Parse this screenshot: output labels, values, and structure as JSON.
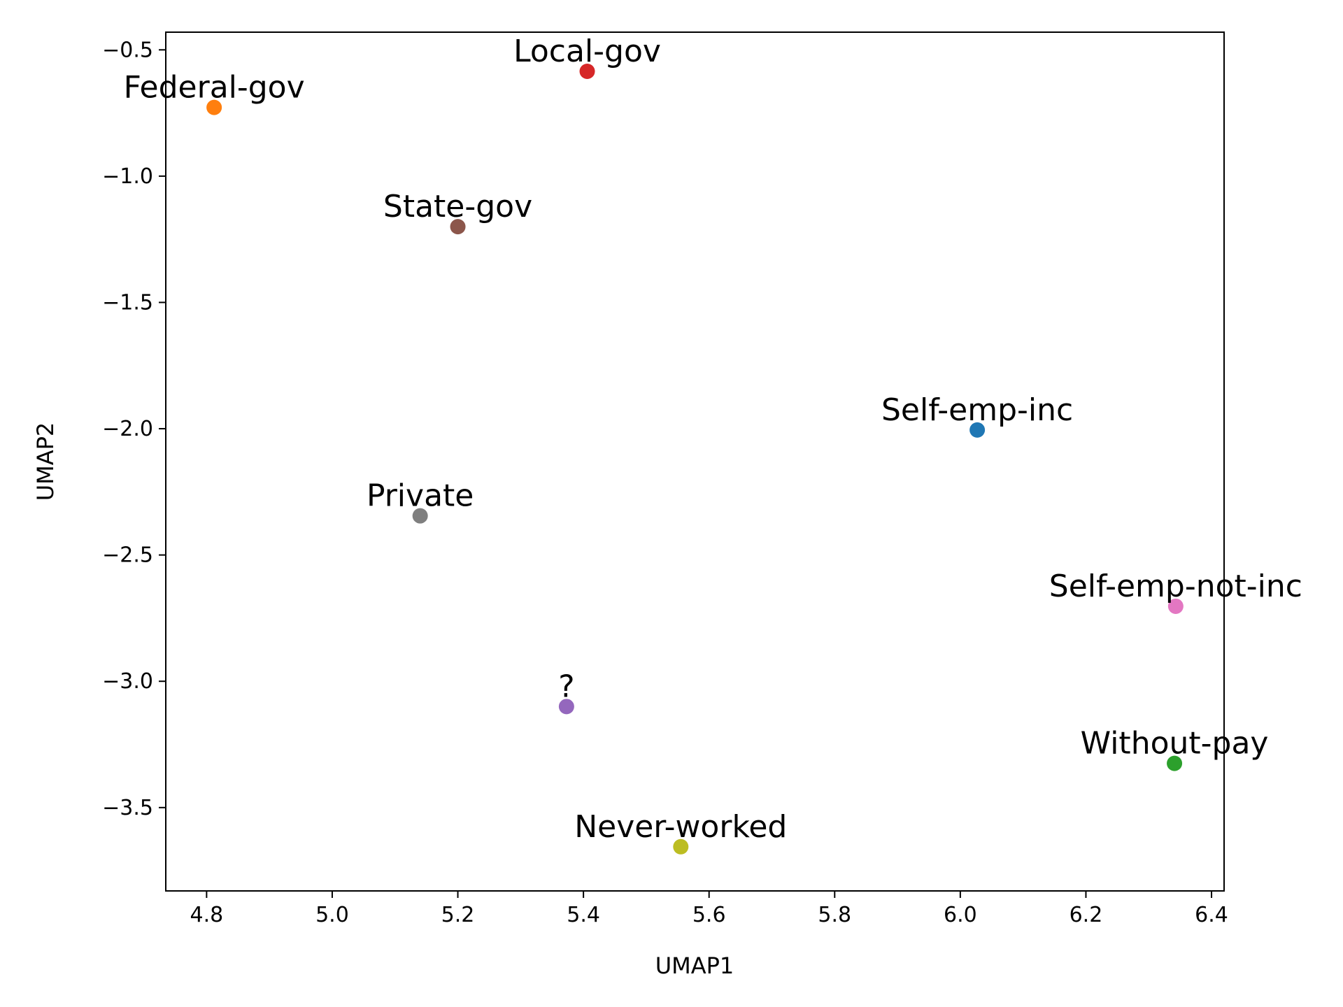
{
  "chart_data": {
    "type": "scatter",
    "xlabel": "UMAP1",
    "ylabel": "UMAP2",
    "xlim": [
      4.735,
      6.42
    ],
    "ylim": [
      -3.83,
      -0.43
    ],
    "xticks": [
      4.8,
      5.0,
      5.2,
      5.4,
      5.6,
      5.8,
      6.0,
      6.2,
      6.4
    ],
    "xtick_labels": [
      "4.8",
      "5.0",
      "5.2",
      "5.4",
      "5.6",
      "5.8",
      "6.0",
      "6.2",
      "6.4"
    ],
    "yticks": [
      -0.5,
      -1.0,
      -1.5,
      -2.0,
      -2.5,
      -3.0,
      -3.5
    ],
    "ytick_labels": [
      "−0.5",
      "−1.0",
      "−1.5",
      "−2.0",
      "−2.5",
      "−3.0",
      "−3.5"
    ],
    "grid": false,
    "points": [
      {
        "label": "Self-emp-inc",
        "x": 6.027,
        "y": -2.005,
        "color": "#1f77b4"
      },
      {
        "label": "Federal-gov",
        "x": 4.812,
        "y": -0.728,
        "color": "#ff7f0e"
      },
      {
        "label": "Without-pay",
        "x": 6.341,
        "y": -3.325,
        "color": "#2ca02c"
      },
      {
        "label": "Local-gov",
        "x": 5.406,
        "y": -0.585,
        "color": "#d62728"
      },
      {
        "label": "?",
        "x": 5.373,
        "y": -3.1,
        "color": "#9467bd"
      },
      {
        "label": "State-gov",
        "x": 5.2,
        "y": -1.2,
        "color": "#8c564b"
      },
      {
        "label": "Self-emp-not-inc",
        "x": 6.343,
        "y": -2.703,
        "color": "#e377c2"
      },
      {
        "label": "Private",
        "x": 5.14,
        "y": -2.345,
        "color": "#7f7f7f"
      },
      {
        "label": "Never-worked",
        "x": 5.555,
        "y": -3.655,
        "color": "#bcbd22"
      }
    ]
  }
}
